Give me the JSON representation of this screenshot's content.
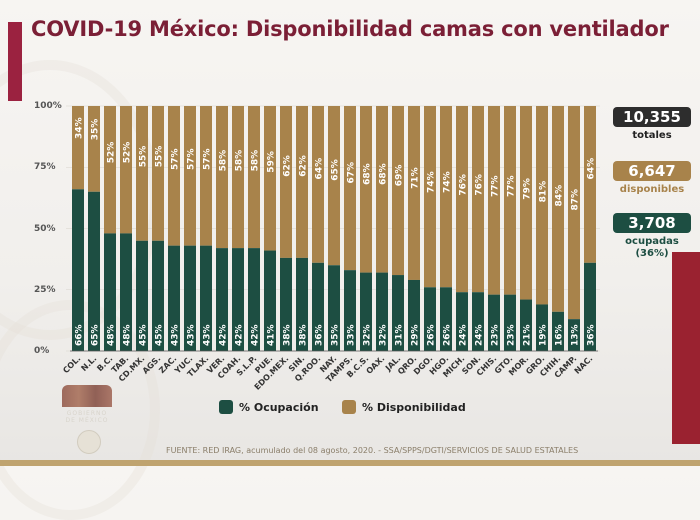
{
  "title": "COVID-19 México: Disponibilidad camas con ventilador",
  "colors": {
    "ocupacion": "#1d4e42",
    "disponibilidad": "#a8834b",
    "title": "#7b1f36",
    "totales": "#2d2d2d"
  },
  "legend": {
    "ocupacion": "% Ocupación",
    "disponibilidad": "% Disponibilidad"
  },
  "stats": {
    "totales": {
      "value": "10,355",
      "label": "totales"
    },
    "disponibles": {
      "value": "6,647",
      "label": "disponibles"
    },
    "ocupadas": {
      "value": "3,708",
      "label": "ocupadas",
      "pct": "(36%)"
    }
  },
  "source": "FUENTE: RED IRAG, acumulado del 08 agosto, 2020. -  SSA/SPPS/DGTI/SERVICIOS DE SALUD ESTATALES",
  "logo_text": "GOBIERNO DE MÉXICO",
  "chart_data": {
    "type": "bar",
    "stacked": true,
    "title": "COVID-19 México: Disponibilidad camas con ventilador",
    "xlabel": "",
    "ylabel": "",
    "ylim": [
      0,
      100
    ],
    "yticks": [
      "0%",
      "25%",
      "50%",
      "75%",
      "100%"
    ],
    "legend_position": "bottom",
    "categories": [
      "COL.",
      "N.L.",
      "B.C.",
      "TAB.",
      "CD.MX.",
      "AGS.",
      "ZAC.",
      "YUC.",
      "TLAX.",
      "VER.",
      "COAH.",
      "S.L.P.",
      "PUE.",
      "EDO.MEX.",
      "SIN.",
      "Q.ROO.",
      "NAY.",
      "TAMPS.",
      "B.C.S.",
      "OAX.",
      "JAL.",
      "QRO.",
      "DGO.",
      "HGO.",
      "MICH.",
      "SON.",
      "CHIS.",
      "GTO.",
      "MOR.",
      "GRO.",
      "CHIH.",
      "CAMP.",
      "NAC."
    ],
    "series": [
      {
        "name": "% Ocupación",
        "values": [
          66,
          65,
          48,
          48,
          45,
          45,
          43,
          43,
          43,
          42,
          42,
          42,
          41,
          38,
          38,
          36,
          35,
          33,
          32,
          32,
          31,
          29,
          26,
          26,
          24,
          24,
          23,
          23,
          21,
          19,
          16,
          13,
          36
        ]
      },
      {
        "name": "% Disponibilidad",
        "values": [
          34,
          35,
          52,
          52,
          55,
          55,
          57,
          57,
          57,
          58,
          58,
          58,
          59,
          62,
          62,
          64,
          65,
          67,
          68,
          68,
          69,
          71,
          74,
          74,
          76,
          76,
          77,
          77,
          79,
          81,
          84,
          87,
          64
        ]
      }
    ]
  }
}
